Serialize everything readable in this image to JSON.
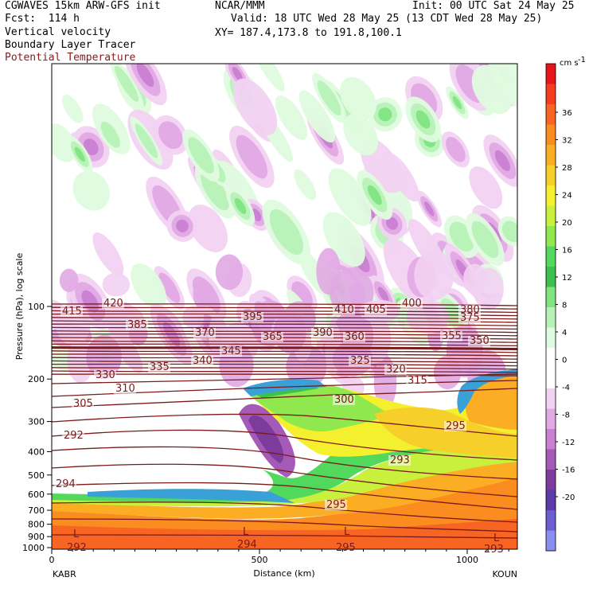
{
  "header": {
    "model": "CGWAVES 15km ARW-GFS init",
    "fcst": "Fcst:  114 h",
    "field1": "Vertical velocity",
    "field2": "Boundary Layer Tracer",
    "field3": "Potential Temperature",
    "org": "NCAR/MMM",
    "init": "Init: 00 UTC Sat 24 May 25",
    "valid": "Valid: 18 UTC Wed 28 May 25 (13 CDT Wed 28 May 25)",
    "xy": "XY= 187.4,173.8 to 191.8,100.1"
  },
  "colors": {
    "theta_line": "#7a1a1a",
    "field3_text": "#8b1a1a"
  },
  "chart_data": {
    "type": "heatmap",
    "xlabel": "Distance (km)",
    "ylabel": "Pressure (hPa), log scale",
    "x_ticks": [
      0,
      500,
      1000
    ],
    "y_ticks": [
      100,
      200,
      300,
      400,
      500,
      600,
      700,
      800,
      900,
      1000
    ],
    "endpoints": {
      "left": "KABR",
      "right": "KOUN"
    },
    "xlim": [
      0,
      1170
    ],
    "colorbar": {
      "unit": "cm s",
      "unit_exp": "-1",
      "labels": [
        36,
        32,
        28,
        24,
        20,
        16,
        12,
        8,
        4,
        0,
        -4,
        -8,
        -12,
        -16,
        -20
      ],
      "colors": [
        "#e8141c",
        "#f53c1e",
        "#f86522",
        "#fb8c20",
        "#fbae24",
        "#f6cf2a",
        "#f4f02e",
        "#c8f03c",
        "#8ee84e",
        "#52d85c",
        "#3cc04e",
        "#7fe47f",
        "#b6f2b6",
        "#dffbdf",
        "#ffffff",
        "#ffffff",
        "#f2d2f2",
        "#e1a9e4",
        "#c97fd2",
        "#a65ab8",
        "#7d3b9c",
        "#5c3aa8",
        "#6a5ed2",
        "#8a8ef0"
      ]
    },
    "theta_labels": [
      "420",
      "415",
      "410",
      "405",
      "400",
      "395",
      "390",
      "385",
      "380",
      "375",
      "370",
      "365",
      "360",
      "355",
      "350",
      "345",
      "340",
      "335",
      "330",
      "325",
      "320",
      "315",
      "310",
      "305",
      "300",
      "295",
      "292",
      "293",
      "294",
      "295"
    ],
    "low_markers": [
      "L",
      "L",
      "L",
      "L"
    ],
    "low_values": [
      "292",
      "294",
      "295",
      "293"
    ]
  }
}
